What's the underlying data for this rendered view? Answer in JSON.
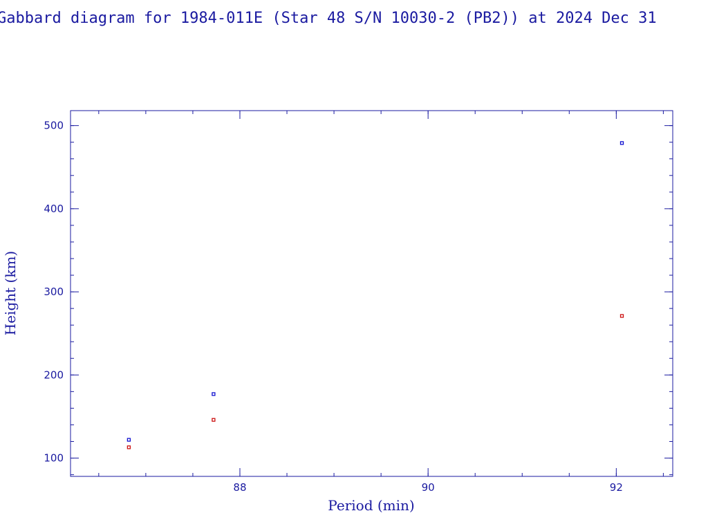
{
  "chart_data": {
    "type": "scatter",
    "title": "Gabbard diagram for 1984-011E (Star 48 S/N 10030-2 (PB2)) at 2024 Dec 31",
    "xlabel": "Period (min)",
    "ylabel": "Height (km)",
    "xlim": [
      86.2,
      92.6
    ],
    "ylim": [
      78,
      518
    ],
    "xticks": [
      88,
      90,
      92
    ],
    "yticks": [
      100,
      200,
      300,
      400,
      500
    ],
    "grid": false,
    "colors": {
      "frame": "#1a1aa0",
      "apogee": "#1010d0",
      "perigee": "#cc1010"
    },
    "series": [
      {
        "role": "apogee",
        "x": [
          86.82,
          87.72,
          92.06
        ],
        "y": [
          122,
          177,
          479
        ]
      },
      {
        "role": "perigee",
        "x": [
          86.82,
          87.72,
          92.06
        ],
        "y": [
          113,
          146,
          271
        ]
      }
    ]
  }
}
